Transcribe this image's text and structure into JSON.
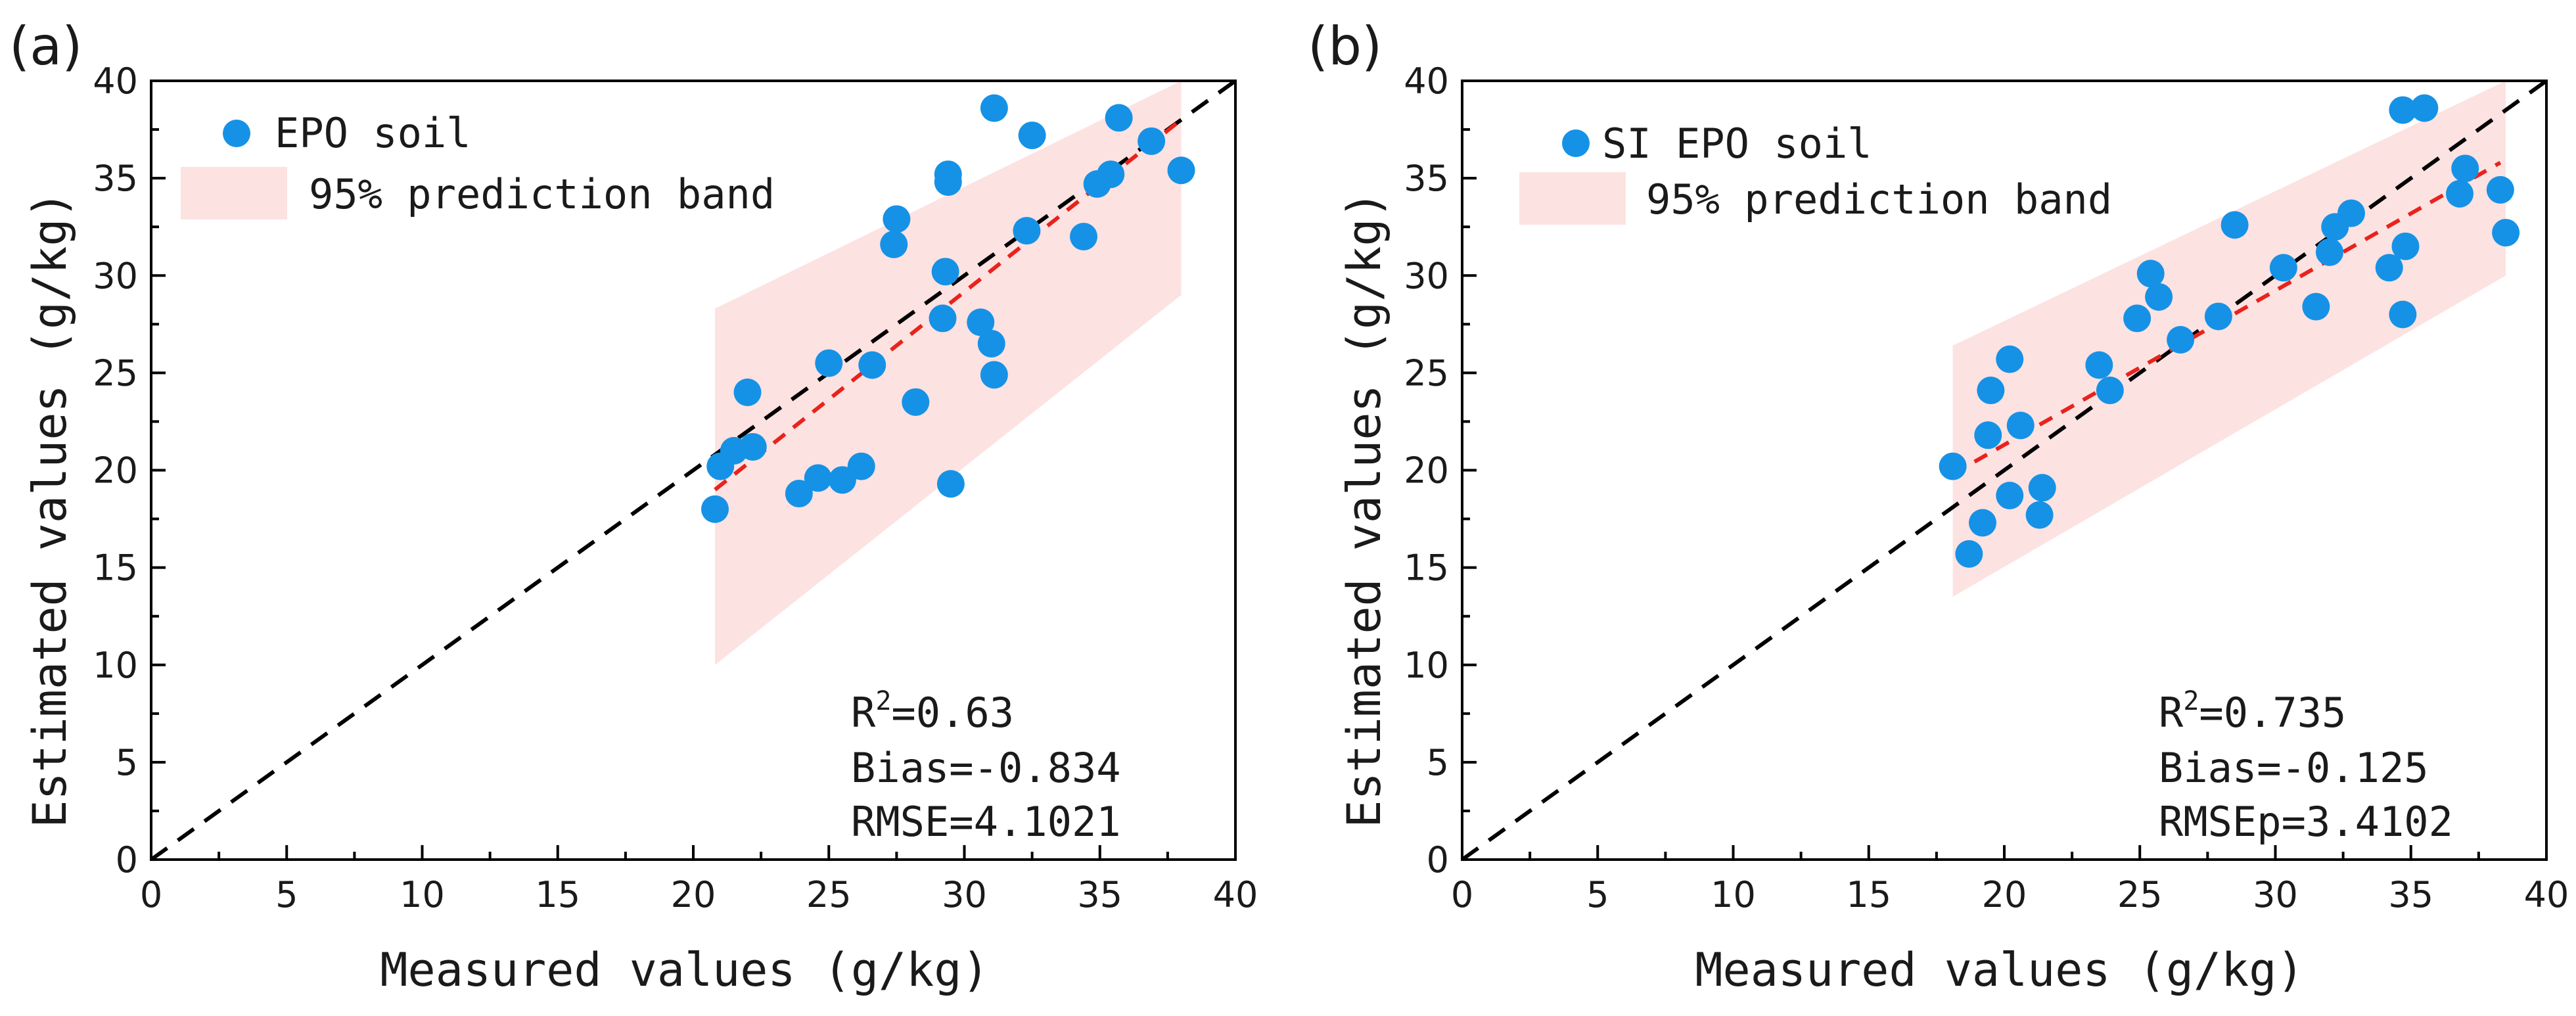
{
  "chart_data": [
    {
      "panel": "(a)",
      "type": "scatter",
      "xlabel": "Measured values (g/kg)",
      "ylabel": "Estimated values (g/kg)",
      "xlim": [
        0,
        40
      ],
      "ylim": [
        0,
        40
      ],
      "xticks": [
        0,
        5,
        10,
        15,
        20,
        25,
        30,
        35,
        40
      ],
      "yticks": [
        0,
        5,
        10,
        15,
        20,
        25,
        30,
        35,
        40
      ],
      "legend": [
        "EPO soil",
        "95% prediction band"
      ],
      "legend_position": "top-left",
      "stats": {
        "r2_prefix": "R",
        "r2_sup": "2",
        "r2_value": "=0.63",
        "bias": "Bias=-0.834",
        "rmse": "RMSE=4.1021"
      },
      "points": {
        "x": [
          20.8,
          21.0,
          21.5,
          22.0,
          22.2,
          23.9,
          24.6,
          25.0,
          25.5,
          26.2,
          26.6,
          27.4,
          27.5,
          28.2,
          29.2,
          29.3,
          29.4,
          29.4,
          29.5,
          30.6,
          31.0,
          31.1,
          31.1,
          32.3,
          32.5,
          34.4,
          34.9,
          35.4,
          35.7,
          36.9,
          38.0
        ],
        "y": [
          18.0,
          20.2,
          21.0,
          24.0,
          21.2,
          18.8,
          19.6,
          25.5,
          19.5,
          20.2,
          25.4,
          31.6,
          32.9,
          23.5,
          27.8,
          30.2,
          35.2,
          34.8,
          19.3,
          27.6,
          26.5,
          24.9,
          38.6,
          32.3,
          37.2,
          32.0,
          34.7,
          35.2,
          38.1,
          36.9,
          35.4
        ]
      },
      "fit_line": {
        "x": [
          20.8,
          38.0
        ],
        "y": [
          19.0,
          38.0
        ]
      },
      "band": {
        "x": [
          20.8,
          38.0
        ],
        "lower": [
          10.0,
          29.0
        ],
        "upper": [
          28.3,
          40.0
        ]
      },
      "identity_line": {
        "x": [
          0,
          40
        ],
        "y": [
          0,
          40
        ]
      }
    },
    {
      "panel": "(b)",
      "type": "scatter",
      "xlabel": "Measured values (g/kg)",
      "ylabel": "Estimated values (g/kg)",
      "xlim": [
        0,
        40
      ],
      "ylim": [
        0,
        40
      ],
      "xticks": [
        0,
        5,
        10,
        15,
        20,
        25,
        30,
        35,
        40
      ],
      "yticks": [
        0,
        5,
        10,
        15,
        20,
        25,
        30,
        35,
        40
      ],
      "legend": [
        "SI EPO soil",
        "95% prediction band"
      ],
      "legend_position": "top-left",
      "stats": {
        "r2_prefix": "R",
        "r2_sup": "2",
        "r2_value": "=0.735",
        "bias": "Bias=-0.125",
        "rmse": "RMSEp=3.4102"
      },
      "points": {
        "x": [
          18.1,
          18.7,
          19.2,
          19.4,
          19.5,
          20.2,
          20.2,
          20.6,
          21.3,
          21.4,
          23.5,
          23.9,
          24.9,
          25.4,
          25.7,
          26.5,
          27.9,
          28.5,
          30.3,
          31.5,
          32.0,
          32.2,
          32.8,
          34.2,
          34.7,
          34.7,
          34.8,
          35.5,
          36.8,
          37.0,
          38.3,
          38.5
        ],
        "y": [
          20.2,
          15.7,
          17.3,
          21.8,
          24.1,
          18.7,
          25.7,
          22.3,
          17.7,
          19.1,
          25.4,
          24.1,
          27.8,
          30.1,
          28.9,
          26.7,
          27.9,
          32.6,
          30.4,
          28.4,
          31.2,
          32.5,
          33.2,
          30.4,
          38.5,
          28.0,
          31.5,
          38.6,
          34.2,
          35.5,
          34.4,
          32.2
        ]
      },
      "fit_line": {
        "x": [
          18.1,
          38.3
        ],
        "y": [
          19.8,
          35.8
        ]
      },
      "band": {
        "x": [
          18.1,
          38.5
        ],
        "lower": [
          13.5,
          30.0
        ],
        "upper": [
          26.4,
          40.0
        ]
      },
      "identity_line": {
        "x": [
          0,
          40
        ],
        "y": [
          0,
          40
        ]
      }
    }
  ],
  "colors": {
    "point": "#1592e6",
    "fit": "#e8231c",
    "band": "#fde2e2",
    "identity": "#000000"
  }
}
